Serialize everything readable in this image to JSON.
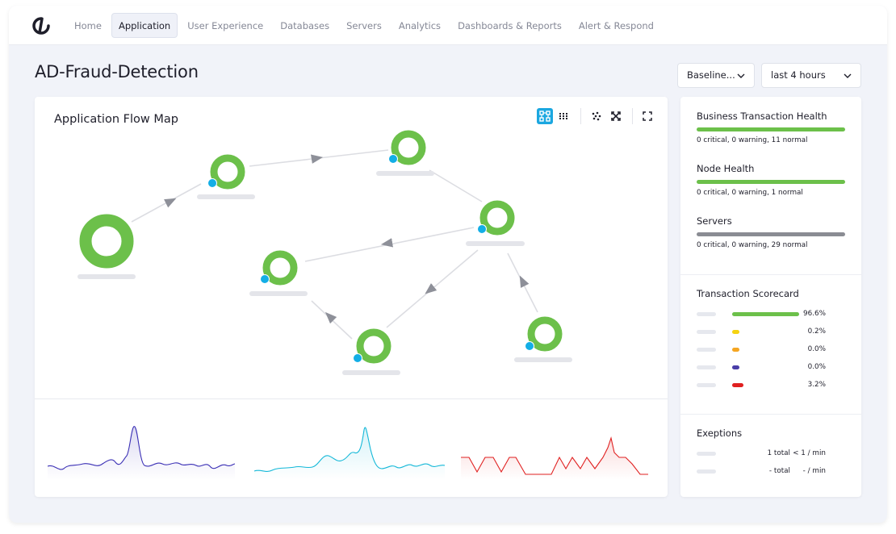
{
  "nav": {
    "items": [
      {
        "label": "Home",
        "active": false
      },
      {
        "label": "Application",
        "active": true
      },
      {
        "label": "User Experience",
        "active": false
      },
      {
        "label": "Databases",
        "active": false
      },
      {
        "label": "Servers",
        "active": false
      },
      {
        "label": "Analytics",
        "active": false
      },
      {
        "label": "Dashboards & Reports",
        "active": false
      },
      {
        "label": "Alert & Respond",
        "active": false
      }
    ]
  },
  "page": {
    "title": "AD-Fraud-Detection"
  },
  "filters": {
    "baseline": "Baseline...",
    "time_range": "last 4 hours"
  },
  "flow_map": {
    "title": "Application Flow Map",
    "toolbar_icons": [
      "flow-view-icon",
      "grid-view-icon",
      "scatter-layout-icon",
      "expand-layout-icon",
      "fullscreen-icon"
    ]
  },
  "side": {
    "business_health": {
      "title": "Business Transaction Health",
      "summary": "0 critical, 0 warning, 11 normal",
      "color": "#6cc04a"
    },
    "node_health": {
      "title": "Node Health",
      "summary": "0 critical, 0 warning, 1 normal",
      "color": "#6cc04a"
    },
    "servers": {
      "title": "Servers",
      "summary": "0 critical, 0 warning, 29 normal",
      "color": "#8a8c93"
    },
    "scorecard": {
      "title": "Transaction Scorecard",
      "rows": [
        {
          "value": "96.6%",
          "color": "#6cc04a",
          "fraction": 0.966
        },
        {
          "value": "0.2%",
          "color": "#f5d312",
          "fraction": 0.002
        },
        {
          "value": "0.0%",
          "color": "#f5a623",
          "fraction": 0.0
        },
        {
          "value": "0.0%",
          "color": "#4a3ea8",
          "fraction": 0.0
        },
        {
          "value": "3.2%",
          "color": "#e02020",
          "fraction": 0.032
        }
      ]
    },
    "exceptions": {
      "title": "Exeptions",
      "rows": [
        {
          "total": "1 total",
          "rate": "< 1 / min"
        },
        {
          "total": "- total",
          "rate": "- / min"
        }
      ]
    }
  },
  "colors": {
    "accent": "#1ba7e0",
    "node_green": "#6cc04a",
    "node_dot": "#13aee6"
  }
}
